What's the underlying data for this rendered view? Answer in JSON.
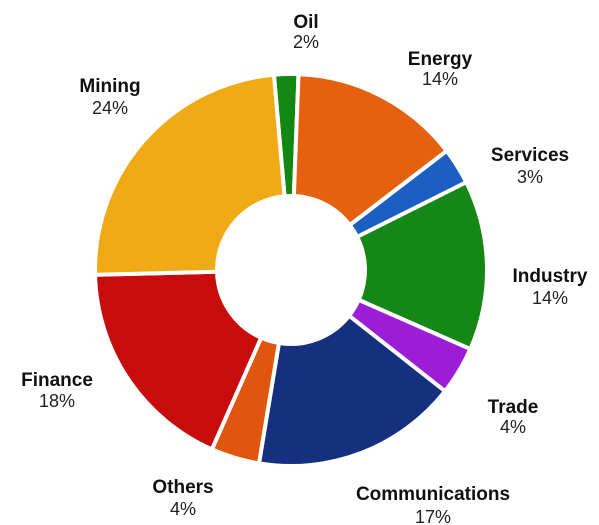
{
  "chart_data": {
    "type": "pie",
    "donut": true,
    "title": "",
    "legend": "none",
    "start_angle_deg": 355,
    "slices": [
      {
        "label": "Oil",
        "percent_label": "2%",
        "value": 2,
        "color": "#128712"
      },
      {
        "label": "Energy",
        "percent_label": "14%",
        "value": 14,
        "color": "#e5610f"
      },
      {
        "label": "Services",
        "percent_label": "3%",
        "value": 3,
        "color": "#1a5fc1"
      },
      {
        "label": "Industry",
        "percent_label": "14%",
        "value": 14,
        "color": "#148714"
      },
      {
        "label": "Trade",
        "percent_label": "4%",
        "value": 4,
        "color": "#9b1ed6"
      },
      {
        "label": "Communications",
        "percent_label": "17%",
        "value": 17,
        "color": "#14307e"
      },
      {
        "label": "Others",
        "percent_label": "4%",
        "value": 4,
        "color": "#e0560e"
      },
      {
        "label": "Finance",
        "percent_label": "18%",
        "value": 18,
        "color": "#c80c0c"
      },
      {
        "label": "Mining",
        "percent_label": "24%",
        "value": 24,
        "color": "#f0aa16"
      }
    ]
  }
}
